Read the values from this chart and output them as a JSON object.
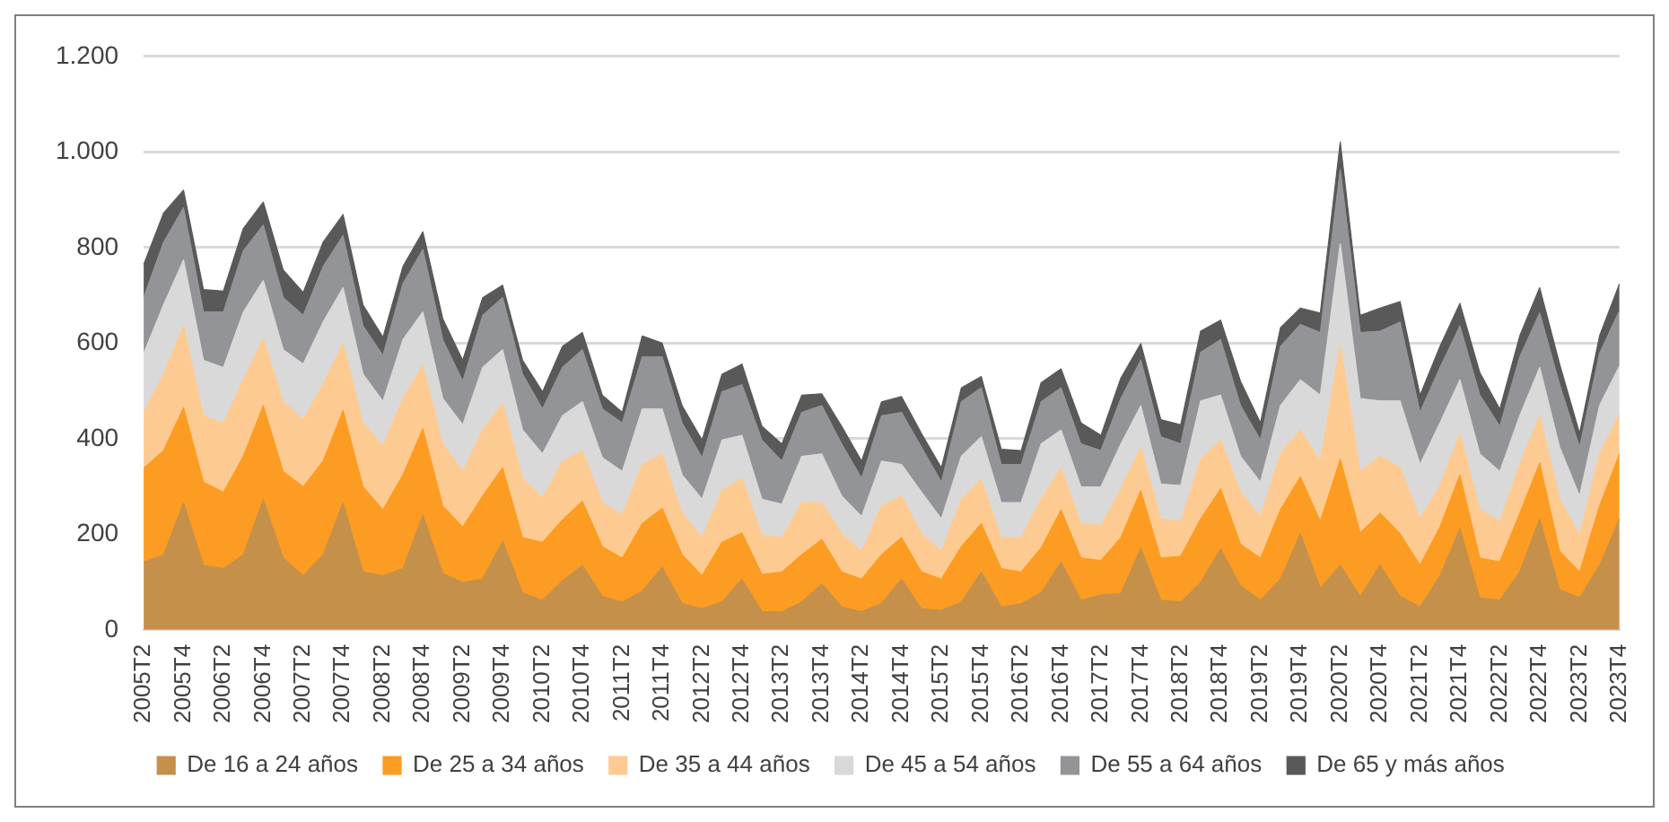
{
  "chart_data": {
    "type": "area",
    "stacked": true,
    "legend": "bottom",
    "grid": "y",
    "ylim": [
      0,
      1200
    ],
    "yticks": [
      0,
      200,
      400,
      600,
      800,
      {
        "value": 1000,
        "label": "1.000"
      },
      {
        "value": 1200,
        "label": "1.200"
      }
    ],
    "categories": [
      "2005T2",
      null,
      "2005T4",
      null,
      "2006T2",
      null,
      "2006T4",
      null,
      "2007T2",
      null,
      "2007T4",
      null,
      "2008T2",
      null,
      "2008T4",
      null,
      "2009T2",
      null,
      "2009T4",
      null,
      "2010T2",
      null,
      "2010T4",
      null,
      "2011T2",
      null,
      "2011T4",
      null,
      "2012T2",
      null,
      "2012T4",
      null,
      "2013T2",
      null,
      "2013T4",
      null,
      "2014T2",
      null,
      "2014T4",
      null,
      "2015T2",
      null,
      "2015T4",
      null,
      "2016T2",
      null,
      "2016T4",
      null,
      "2017T2",
      null,
      "2017T4",
      null,
      "2018T2",
      null,
      "2018T4",
      null,
      "2019T2",
      null,
      "2019T4",
      null,
      "2020T2",
      null,
      "2020T4",
      null,
      "2021T2",
      null,
      "2021T4",
      null,
      "2022T2",
      null,
      "2022T4",
      null,
      "2023T2",
      null,
      "2023T4"
    ],
    "series": [
      {
        "name": "De 16 a 24 años",
        "color": "#c5904a",
        "values": [
          142,
          157,
          266,
          135,
          128,
          157,
          273,
          150,
          113,
          157,
          266,
          121,
          113,
          128,
          240,
          118,
          99,
          106,
          186,
          77,
          62,
          102,
          135,
          70,
          58,
          81,
          131,
          55,
          44,
          58,
          106,
          38,
          38,
          58,
          96,
          48,
          38,
          55,
          106,
          44,
          41,
          58,
          121,
          48,
          55,
          77,
          142,
          62,
          73,
          76,
          171,
          62,
          58,
          99,
          169,
          92,
          62,
          106,
          201,
          87,
          135,
          70,
          135,
          70,
          48,
          113,
          212,
          67,
          62,
          121,
          232,
          84,
          67,
          135,
          232
        ]
      },
      {
        "name": "De 25 a 34 años",
        "color": "#fc9c22",
        "values": [
          196,
          218,
          199,
          174,
          160,
          206,
          196,
          181,
          186,
          196,
          193,
          178,
          138,
          196,
          181,
          141,
          116,
          174,
          153,
          116,
          121,
          128,
          134,
          104,
          92,
          141,
          123,
          102,
          69,
          125,
          97,
          78,
          83,
          99,
          93,
          73,
          68,
          102,
          87,
          77,
          65,
          116,
          101,
          80,
          66,
          94,
          109,
          88,
          72,
          117,
          120,
          88,
          96,
          133,
          126,
          87,
          88,
          145,
          119,
          140,
          222,
          133,
          109,
          131,
          87,
          102,
          112,
          83,
          80,
          123,
          117,
          80,
          54,
          124,
          136
        ]
      },
      {
        "name": "De 35 a 44 años",
        "color": "#fdcb91",
        "values": [
          117,
          160,
          171,
          138,
          145,
          160,
          141,
          146,
          141,
          160,
          141,
          134,
          134,
          160,
          133,
          130,
          116,
          138,
          135,
          124,
          93,
          123,
          106,
          92,
          91,
          124,
          114,
          87,
          80,
          108,
          114,
          82,
          72,
          109,
          77,
          80,
          58,
          102,
          87,
          80,
          58,
          99,
          92,
          65,
          72,
          102,
          88,
          72,
          74,
          102,
          91,
          82,
          73,
          125,
          102,
          109,
          87,
          117,
          98,
          126,
          239,
          128,
          119,
          138,
          97,
          87,
          87,
          101,
          85,
          102,
          99,
          109,
          77,
          109,
          83
        ]
      },
      {
        "name": "De 45 a 54 años",
        "color": "#d9d9d9",
        "values": [
          123,
          145,
          138,
          117,
          116,
          142,
          121,
          109,
          116,
          131,
          116,
          102,
          93,
          123,
          111,
          95,
          98,
          131,
          112,
          101,
          92,
          95,
          102,
          94,
          90,
          116,
          94,
          80,
          80,
          106,
          90,
          75,
          70,
          97,
          102,
          79,
          73,
          94,
          66,
          87,
          68,
          90,
          90,
          73,
          73,
          116,
          79,
          77,
          80,
          94,
          87,
          73,
          75,
          122,
          94,
          75,
          72,
          101,
          105,
          138,
          212,
          153,
          116,
          140,
          114,
          131,
          112,
          117,
          104,
          102,
          101,
          109,
          82,
          101,
          101
        ]
      },
      {
        "name": "De 55 a 64 años",
        "color": "#939497",
        "values": [
          117,
          131,
          109,
          101,
          116,
          128,
          116,
          109,
          102,
          116,
          109,
          101,
          96,
          117,
          131,
          123,
          91,
          109,
          109,
          117,
          94,
          101,
          109,
          102,
          102,
          109,
          109,
          109,
          87,
          101,
          106,
          124,
          90,
          92,
          101,
          109,
          80,
          95,
          109,
          94,
          77,
          114,
          102,
          80,
          80,
          88,
          88,
          90,
          76,
          95,
          95,
          99,
          87,
          102,
          116,
          106,
          88,
          124,
          116,
          131,
          155,
          138,
          146,
          165,
          109,
          116,
          113,
          123,
          95,
          123,
          114,
          131,
          102,
          109,
          116
        ]
      },
      {
        "name": "De 65 y más años",
        "color": "#595959",
        "values": [
          69,
          61,
          37,
          47,
          44,
          47,
          48,
          58,
          48,
          51,
          44,
          44,
          38,
          36,
          37,
          44,
          44,
          37,
          26,
          29,
          36,
          44,
          36,
          29,
          22,
          44,
          29,
          36,
          37,
          37,
          43,
          29,
          36,
          36,
          25,
          37,
          36,
          29,
          33,
          29,
          30,
          29,
          24,
          32,
          29,
          40,
          40,
          44,
          32,
          43,
          35,
          36,
          40,
          44,
          41,
          51,
          36,
          39,
          34,
          41,
          58,
          36,
          48,
          43,
          36,
          44,
          47,
          47,
          36,
          44,
          53,
          43,
          29,
          37,
          56
        ]
      }
    ]
  }
}
